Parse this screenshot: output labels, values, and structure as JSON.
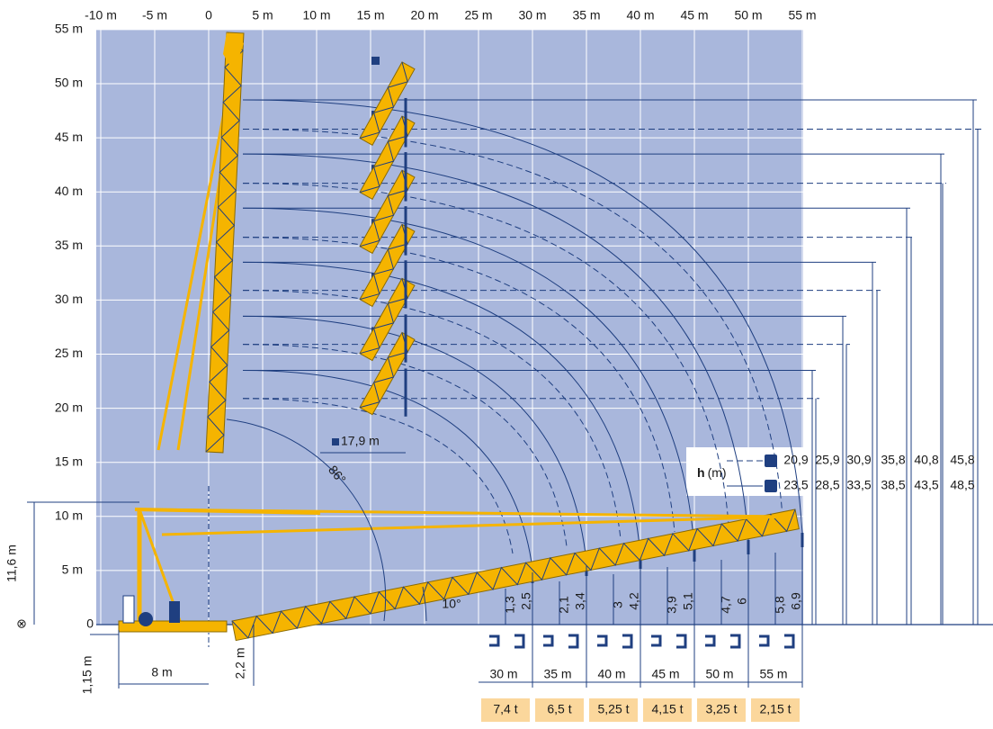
{
  "x_axis": {
    "labels": [
      "-10 m",
      "-5 m",
      "0",
      "5 m",
      "10 m",
      "15 m",
      "20 m",
      "25 m",
      "30 m",
      "35 m",
      "40 m",
      "45 m",
      "50 m",
      "55 m"
    ]
  },
  "y_axis": {
    "labels": [
      "55 m",
      "50 m",
      "45 m",
      "40 m",
      "35 m",
      "30 m",
      "25 m",
      "20 m",
      "15 m",
      "10 m",
      "5 m",
      "0"
    ]
  },
  "annotations": {
    "jib_offset": "17,9 m",
    "angle_max": "86°",
    "angle_min": "10°",
    "height": "11,6 m",
    "base_width": "8 m",
    "base_height": "1,15 m",
    "pivot": "2,2 m",
    "origin": "⊗"
  },
  "legend": {
    "title_bold": "h",
    "title_unit": "(m)",
    "rows": [
      [
        "20,9",
        "25,9",
        "30,9",
        "35,8",
        "40,8",
        "45,8"
      ],
      [
        "23,5",
        "28,5",
        "33,5",
        "38,5",
        "43,5",
        "48,5"
      ]
    ]
  },
  "hook_heights": [
    [
      "1,3",
      "2,5"
    ],
    [
      "2,1",
      "3,4"
    ],
    [
      "3",
      "4,2"
    ],
    [
      "3,9",
      "5,1"
    ],
    [
      "4,7",
      "6"
    ],
    [
      "5,8",
      "6,9"
    ]
  ],
  "radii": [
    "30 m",
    "35 m",
    "40 m",
    "45 m",
    "50 m",
    "55 m"
  ],
  "loads": [
    "7,4 t",
    "6,5 t",
    "5,25 t",
    "4,15 t",
    "3,25 t",
    "2,15 t"
  ]
}
